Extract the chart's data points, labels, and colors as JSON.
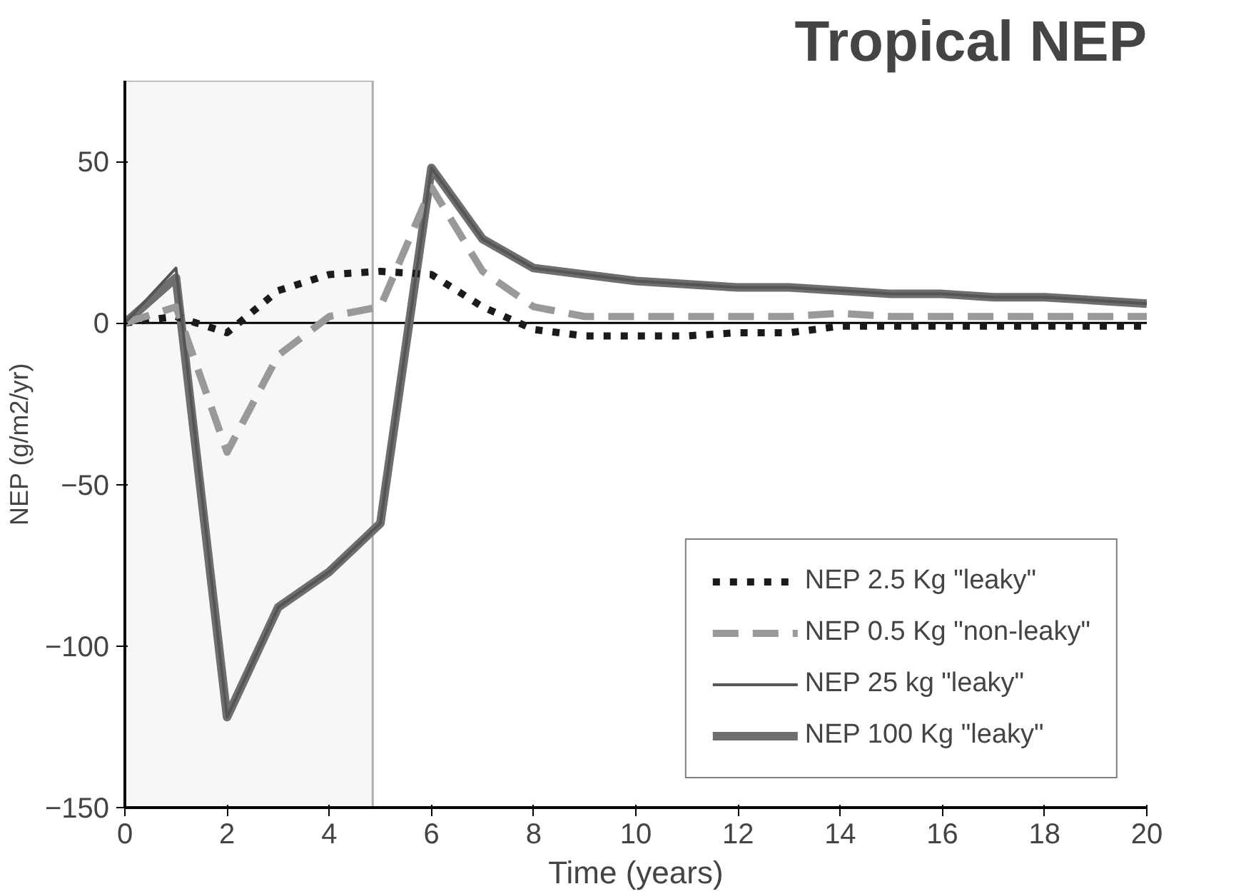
{
  "chart_data": {
    "type": "line",
    "title": "Tropical NEP",
    "xlabel": "Time (years)",
    "ylabel": "NEP (g/m2/yr)",
    "x": [
      0,
      1,
      2,
      3,
      4,
      5,
      6,
      7,
      8,
      9,
      10,
      11,
      12,
      13,
      14,
      15,
      16,
      17,
      18,
      19,
      20
    ],
    "series": [
      {
        "name": "NEP 2.5 Kg \"leaky\"",
        "color": "#1a1a1a",
        "line_style": "dotted",
        "values": [
          0,
          2,
          -3,
          10,
          15,
          16,
          15,
          5,
          -2,
          -4,
          -4,
          -4,
          -3,
          -3,
          -1,
          -1,
          -1,
          -1,
          -1,
          -1,
          -1
        ]
      },
      {
        "name": "NEP 0.5 Kg \"non-leaky\"",
        "color": "#999999",
        "line_style": "dashed",
        "values": [
          0,
          5,
          -40,
          -10,
          2,
          5,
          42,
          16,
          5,
          2,
          2,
          2,
          2,
          2,
          3,
          2,
          2,
          2,
          2,
          2,
          2
        ]
      },
      {
        "name": "NEP 25 kg \"leaky\"",
        "color": "#555555",
        "line_style": "solid",
        "values": [
          0,
          17,
          -122,
          -88,
          -77,
          -62,
          48,
          26,
          17,
          15,
          13,
          12,
          11,
          11,
          10,
          9,
          9,
          8,
          8,
          7,
          6
        ]
      },
      {
        "name": "NEP 100 Kg \"leaky\"",
        "color": "#6e6e6e",
        "line_style": "solid",
        "values": [
          0,
          14,
          -122,
          -88,
          -77,
          -62,
          48,
          26,
          17,
          15,
          13,
          12,
          11,
          11,
          10,
          9,
          9,
          8,
          8,
          7,
          6
        ]
      }
    ],
    "xlim": [
      0,
      20
    ],
    "xticks": [
      0,
      2,
      4,
      6,
      8,
      10,
      12,
      14,
      16,
      18,
      20
    ],
    "ylim": [
      -150,
      75
    ],
    "yticks": [
      -150,
      -100,
      -50,
      0,
      50
    ],
    "ref_lines": [
      {
        "axis": "y",
        "value": 0,
        "color": "#000000"
      }
    ],
    "bands": [
      {
        "axis": "x",
        "from": 0,
        "to": 4.85,
        "color": "#f7f7f7"
      }
    ],
    "grid": false,
    "legend": "bottom right",
    "marker": "none"
  }
}
